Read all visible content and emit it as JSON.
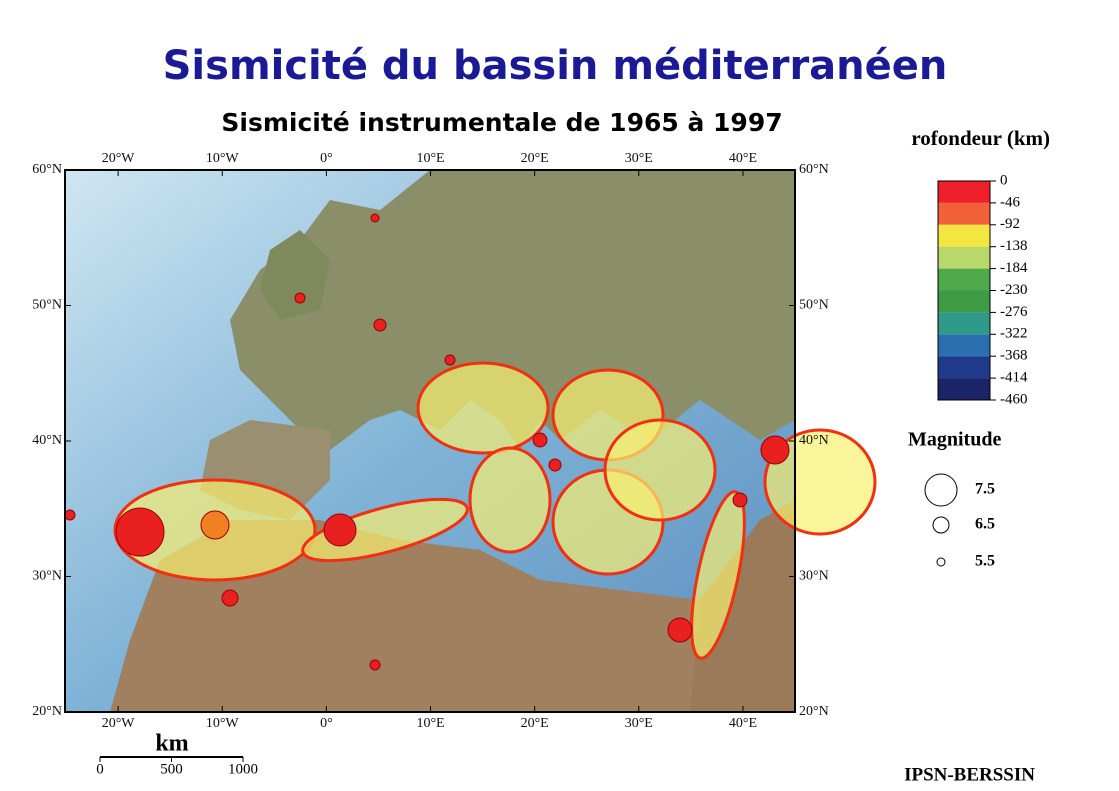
{
  "header": {
    "title": "Sismicité du bassin méditerranéen",
    "subtitle": "Sismicité instrumentale de 1965 à 1997"
  },
  "map": {
    "lon_ticks": [
      {
        "value": -20,
        "label": "20°W"
      },
      {
        "value": -10,
        "label": "10°W"
      },
      {
        "value": 0,
        "label": "0°"
      },
      {
        "value": 10,
        "label": "10°E"
      },
      {
        "value": 20,
        "label": "20°E"
      },
      {
        "value": 30,
        "label": "30°E"
      },
      {
        "value": 40,
        "label": "40°E"
      }
    ],
    "lat_ticks": [
      {
        "value": 60,
        "label": "60°N"
      },
      {
        "value": 50,
        "label": "50°N"
      },
      {
        "value": 40,
        "label": "40°N"
      },
      {
        "value": 30,
        "label": "30°N"
      },
      {
        "value": 20,
        "label": "20°N"
      }
    ]
  },
  "depth_legend": {
    "title": "rofondeur (km)",
    "levels": [
      0,
      -46,
      -92,
      -138,
      -184,
      -230,
      -276,
      -322,
      -368,
      -414,
      -460
    ],
    "colors": [
      "#f0202a",
      "#f2603a",
      "#f3e640",
      "#b8d86a",
      "#4fa84a",
      "#3f9a45",
      "#2f9a8a",
      "#2a6fb0",
      "#1f3a8a",
      "#1a2466",
      "#5a2a4a"
    ]
  },
  "magnitude_legend": {
    "title": "Magnitude",
    "values": [
      7.5,
      6.5,
      5.5
    ]
  },
  "scale_bar": {
    "unit": "km",
    "ticks": [
      0,
      500,
      1000
    ]
  },
  "credit": "IPSN-BERSSIN"
}
